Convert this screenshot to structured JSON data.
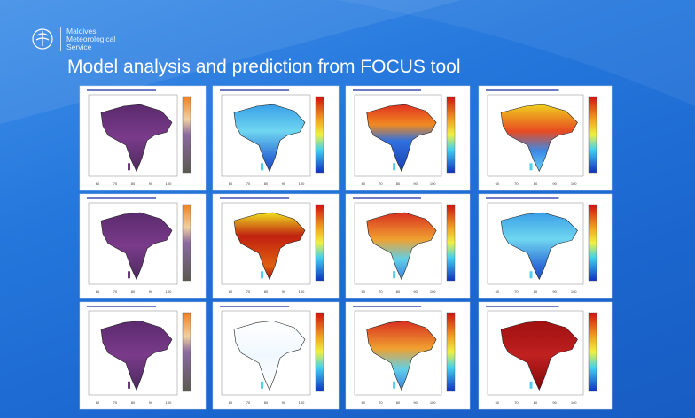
{
  "header": {
    "org": [
      "Maldives",
      "Meteorological",
      "Service"
    ],
    "title": "Model analysis and prediction from FOCUS tool"
  },
  "map_axis": {
    "x_ticks": [
      "60",
      "70",
      "80",
      "90",
      "100"
    ]
  }
}
